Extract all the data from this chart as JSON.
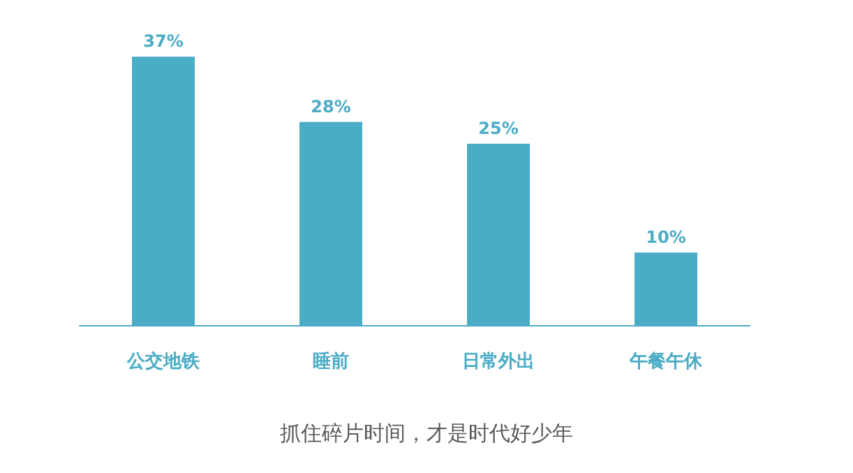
{
  "chart_data": {
    "type": "bar",
    "categories": [
      "公交地铁",
      "睡前",
      "日常外出",
      "午餐午休"
    ],
    "values": [
      37,
      28,
      25,
      10
    ],
    "value_labels": [
      "37%",
      "28%",
      "25%",
      "10%"
    ],
    "color": "#4bacc6",
    "annotations": [
      "抓住碎片时间，才是时代好少年"
    ]
  }
}
